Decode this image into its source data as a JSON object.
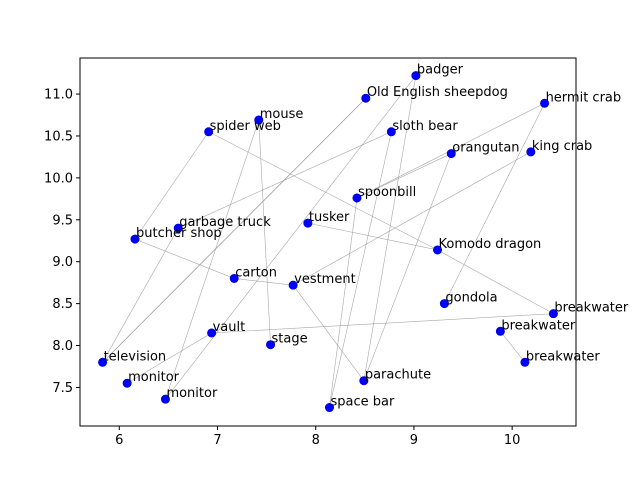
{
  "chart_data": {
    "type": "scatter",
    "title": "",
    "xlabel": "",
    "ylabel": "",
    "xlim": [
      5.6,
      10.65
    ],
    "ylim": [
      7.04,
      11.43
    ],
    "xticks": [
      6,
      7,
      8,
      9,
      10
    ],
    "yticks": [
      7.5,
      8.0,
      8.5,
      9.0,
      9.5,
      10.0,
      10.5,
      11.0
    ],
    "ytick_labels": [
      "7.5",
      "8.0",
      "8.5",
      "9.0",
      "9.5",
      "10.0",
      "10.5",
      "11.0"
    ],
    "grid": false,
    "marker_color": "#0000ff",
    "edge_color": "#8c8c8c",
    "points": [
      {
        "label": "badger",
        "x": 9.02,
        "y": 11.22
      },
      {
        "label": "Old English sheepdog",
        "x": 8.51,
        "y": 10.95
      },
      {
        "label": "hermit crab",
        "x": 10.33,
        "y": 10.89
      },
      {
        "label": "mouse",
        "x": 7.42,
        "y": 10.69
      },
      {
        "label": "spider web",
        "x": 6.91,
        "y": 10.55
      },
      {
        "label": "sloth bear",
        "x": 8.77,
        "y": 10.55
      },
      {
        "label": "king crab",
        "x": 10.19,
        "y": 10.31
      },
      {
        "label": "orangutan",
        "x": 9.38,
        "y": 10.29
      },
      {
        "label": "spoonbill",
        "x": 8.42,
        "y": 9.76
      },
      {
        "label": "tusker",
        "x": 7.92,
        "y": 9.46
      },
      {
        "label": "garbage truck",
        "x": 6.6,
        "y": 9.4
      },
      {
        "label": "butcher shop",
        "x": 6.16,
        "y": 9.27
      },
      {
        "label": "Komodo dragon",
        "x": 9.24,
        "y": 9.14
      },
      {
        "label": "carton",
        "x": 7.17,
        "y": 8.8
      },
      {
        "label": "vestment",
        "x": 7.77,
        "y": 8.72
      },
      {
        "label": "gondola",
        "x": 9.31,
        "y": 8.5
      },
      {
        "label": "breakwater",
        "x": 10.42,
        "y": 8.38
      },
      {
        "label": "breakwater",
        "x": 9.88,
        "y": 8.17
      },
      {
        "label": "vault",
        "x": 6.94,
        "y": 8.15
      },
      {
        "label": "stage",
        "x": 7.54,
        "y": 8.01
      },
      {
        "label": "breakwater",
        "x": 10.13,
        "y": 7.8
      },
      {
        "label": "television",
        "x": 5.83,
        "y": 7.8
      },
      {
        "label": "parachute",
        "x": 8.49,
        "y": 7.58
      },
      {
        "label": "monitor",
        "x": 6.08,
        "y": 7.55
      },
      {
        "label": "monitor",
        "x": 6.47,
        "y": 7.36
      },
      {
        "label": "space bar",
        "x": 8.14,
        "y": 7.26
      }
    ],
    "edges": [
      [
        1,
        21
      ],
      [
        0,
        22
      ],
      [
        0,
        24
      ],
      [
        3,
        19
      ],
      [
        3,
        24
      ],
      [
        4,
        12
      ],
      [
        11,
        13
      ],
      [
        2,
        8
      ],
      [
        2,
        15
      ],
      [
        5,
        10
      ],
      [
        5,
        25
      ],
      [
        6,
        14
      ],
      [
        7,
        22
      ],
      [
        12,
        9
      ],
      [
        12,
        16
      ],
      [
        18,
        23
      ],
      [
        13,
        14
      ],
      [
        14,
        22
      ],
      [
        16,
        18
      ],
      [
        17,
        20
      ],
      [
        1,
        21
      ],
      [
        10,
        21
      ],
      [
        8,
        25
      ],
      [
        11,
        4
      ],
      [
        7,
        8
      ]
    ]
  }
}
